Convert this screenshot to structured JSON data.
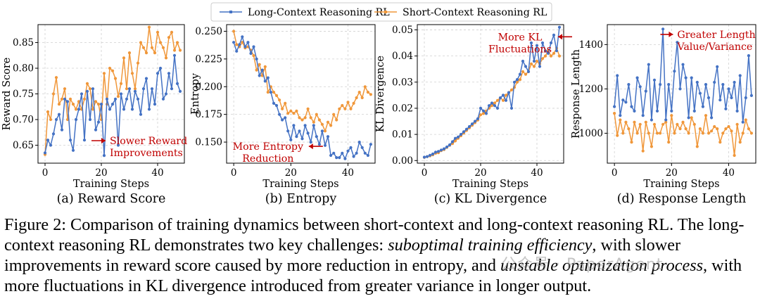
{
  "legend": {
    "entries": [
      {
        "label": "Long-Context Reasoning RL",
        "color": "#4472C4"
      },
      {
        "label": "Short-Context Reasoning RL",
        "color": "#F0973A"
      }
    ]
  },
  "colors": {
    "long": "#4472C4",
    "short": "#F0973A",
    "annotation": "#C00000",
    "grid": "#d0d0d0"
  },
  "chart_data": [
    {
      "type": "line",
      "panel_caption": "(a) Reward Score",
      "xlabel": "Training Steps",
      "ylabel": "Reward Score",
      "xlim": [
        -2.5,
        49.5
      ],
      "ylim": [
        0.615,
        0.885
      ],
      "xticks": [
        0,
        20,
        40
      ],
      "yticks": [
        0.65,
        0.7,
        0.75,
        0.8,
        0.85
      ],
      "ytick_labels": [
        "0.65",
        "0.70",
        "0.75",
        "0.80",
        "0.85"
      ],
      "grid": true,
      "series": [
        {
          "name": "Long-Context Reasoning RL",
          "x": [
            0,
            1,
            2,
            3,
            4,
            5,
            6,
            7,
            8,
            9,
            10,
            11,
            12,
            13,
            14,
            15,
            16,
            17,
            18,
            19,
            20,
            21,
            22,
            23,
            24,
            25,
            26,
            27,
            28,
            29,
            30,
            31,
            32,
            33,
            34,
            35,
            36,
            37,
            38,
            39,
            40,
            41,
            42,
            43,
            44,
            45,
            46,
            47,
            48
          ],
          "values": [
            0.635,
            0.66,
            0.65,
            0.672,
            0.7,
            0.71,
            0.68,
            0.74,
            0.735,
            0.66,
            0.64,
            0.7,
            0.72,
            0.75,
            0.66,
            0.755,
            0.7,
            0.76,
            0.68,
            0.695,
            0.73,
            0.63,
            0.74,
            0.72,
            0.73,
            0.74,
            0.65,
            0.75,
            0.72,
            0.74,
            0.76,
            0.72,
            0.755,
            0.74,
            0.71,
            0.76,
            0.78,
            0.72,
            0.76,
            0.73,
            0.79,
            0.8,
            0.74,
            0.75,
            0.79,
            0.76,
            0.825,
            0.77,
            0.755
          ]
        },
        {
          "name": "Short-Context Reasoning RL",
          "x": [
            0,
            1,
            2,
            3,
            4,
            5,
            6,
            7,
            8,
            9,
            10,
            11,
            12,
            13,
            14,
            15,
            16,
            17,
            18,
            19,
            20,
            21,
            22,
            23,
            24,
            25,
            26,
            27,
            28,
            29,
            30,
            31,
            32,
            33,
            34,
            35,
            36,
            37,
            38,
            39,
            40,
            41,
            42,
            43,
            44,
            45,
            46,
            47,
            48
          ],
          "values": [
            0.632,
            0.715,
            0.7,
            0.75,
            0.782,
            0.73,
            0.74,
            0.76,
            0.7,
            0.74,
            0.73,
            0.72,
            0.735,
            0.72,
            0.74,
            0.77,
            0.76,
            0.72,
            0.735,
            0.73,
            0.7,
            0.79,
            0.73,
            0.8,
            0.795,
            0.78,
            0.745,
            0.77,
            0.82,
            0.76,
            0.83,
            0.79,
            0.76,
            0.81,
            0.85,
            0.84,
            0.83,
            0.88,
            0.84,
            0.83,
            0.87,
            0.85,
            0.84,
            0.82,
            0.86,
            0.87,
            0.835,
            0.85,
            0.835
          ]
        }
      ],
      "annotation": {
        "text_lines": [
          "Slower Reward",
          "Improvements"
        ],
        "x": 23,
        "y": 0.652
      }
    },
    {
      "type": "line",
      "panel_caption": "(b) Entropy",
      "xlabel": "Training Steps",
      "ylabel": "Entropy",
      "xlim": [
        -2.5,
        49.5
      ],
      "ylim": [
        0.131,
        0.256
      ],
      "xticks": [
        0,
        20,
        40
      ],
      "yticks": [
        0.15,
        0.175,
        0.2,
        0.225,
        0.25
      ],
      "ytick_labels": [
        "0.150",
        "0.175",
        "0.200",
        "0.225",
        "0.250"
      ],
      "grid": true,
      "series": [
        {
          "name": "Long-Context Reasoning RL",
          "x": [
            0,
            1,
            2,
            3,
            4,
            5,
            6,
            7,
            8,
            9,
            10,
            11,
            12,
            13,
            14,
            15,
            16,
            17,
            18,
            19,
            20,
            21,
            22,
            23,
            24,
            25,
            26,
            27,
            28,
            29,
            30,
            31,
            32,
            33,
            34,
            35,
            36,
            37,
            38,
            39,
            40,
            41,
            42,
            43,
            44,
            45,
            46,
            47,
            48
          ],
          "values": [
            0.24,
            0.232,
            0.238,
            0.245,
            0.236,
            0.24,
            0.23,
            0.236,
            0.225,
            0.21,
            0.215,
            0.205,
            0.208,
            0.195,
            0.185,
            0.183,
            0.175,
            0.17,
            0.172,
            0.16,
            0.152,
            0.165,
            0.155,
            0.16,
            0.153,
            0.165,
            0.158,
            0.15,
            0.165,
            0.155,
            0.148,
            0.16,
            0.147,
            0.155,
            0.138,
            0.14,
            0.136,
            0.136,
            0.14,
            0.135,
            0.142,
            0.145,
            0.137,
            0.14,
            0.15,
            0.145,
            0.14,
            0.138,
            0.148
          ]
        },
        {
          "name": "Short-Context Reasoning RL",
          "x": [
            0,
            1,
            2,
            3,
            4,
            5,
            6,
            7,
            8,
            9,
            10,
            11,
            12,
            13,
            14,
            15,
            16,
            17,
            18,
            19,
            20,
            21,
            22,
            23,
            24,
            25,
            26,
            27,
            28,
            29,
            30,
            31,
            32,
            33,
            34,
            35,
            36,
            37,
            38,
            39,
            40,
            41,
            42,
            43,
            44,
            45,
            46,
            47,
            48
          ],
          "values": [
            0.25,
            0.238,
            0.236,
            0.24,
            0.235,
            0.236,
            0.233,
            0.228,
            0.215,
            0.22,
            0.21,
            0.218,
            0.195,
            0.2,
            0.195,
            0.192,
            0.188,
            0.18,
            0.185,
            0.176,
            0.178,
            0.176,
            0.178,
            0.172,
            0.17,
            0.172,
            0.18,
            0.172,
            0.168,
            0.175,
            0.17,
            0.166,
            0.16,
            0.168,
            0.165,
            0.175,
            0.17,
            0.18,
            0.183,
            0.18,
            0.186,
            0.18,
            0.185,
            0.19,
            0.195,
            0.19,
            0.2,
            0.195,
            0.193
          ]
        }
      ],
      "annotation": {
        "text_lines": [
          "More Entropy",
          "Reduction"
        ],
        "x": 12,
        "y": 0.143
      }
    },
    {
      "type": "line",
      "panel_caption": "(c) KL Divergence",
      "xlabel": "Training Steps",
      "ylabel": "KL Divergence",
      "xlim": [
        -2.5,
        49.5
      ],
      "ylim": [
        -0.001,
        0.052
      ],
      "xticks": [
        0,
        20,
        40
      ],
      "yticks": [
        0.0,
        0.01,
        0.02,
        0.03,
        0.04,
        0.05
      ],
      "ytick_labels": [
        "0.00",
        "0.01",
        "0.02",
        "0.03",
        "0.04",
        "0.05"
      ],
      "grid": true,
      "series": [
        {
          "name": "Long-Context Reasoning RL",
          "x": [
            0,
            1,
            2,
            3,
            4,
            5,
            6,
            7,
            8,
            9,
            10,
            11,
            12,
            13,
            14,
            15,
            16,
            17,
            18,
            19,
            20,
            21,
            22,
            23,
            24,
            25,
            26,
            27,
            28,
            29,
            30,
            31,
            32,
            33,
            34,
            35,
            36,
            37,
            38,
            39,
            40,
            41,
            42,
            43,
            44,
            45,
            46,
            47,
            48
          ],
          "values": [
            0.0013,
            0.0015,
            0.002,
            0.0025,
            0.0032,
            0.0035,
            0.004,
            0.0045,
            0.0052,
            0.006,
            0.0072,
            0.0085,
            0.009,
            0.01,
            0.011,
            0.012,
            0.013,
            0.014,
            0.015,
            0.016,
            0.02,
            0.019,
            0.018,
            0.021,
            0.022,
            0.021,
            0.02,
            0.024,
            0.025,
            0.023,
            0.026,
            0.02,
            0.03,
            0.031,
            0.033,
            0.038,
            0.036,
            0.034,
            0.045,
            0.038,
            0.044,
            0.036,
            0.045,
            0.042,
            0.041,
            0.045,
            0.048,
            0.042,
            0.051
          ]
        },
        {
          "name": "Short-Context Reasoning RL",
          "x": [
            0,
            1,
            2,
            3,
            4,
            5,
            6,
            7,
            8,
            9,
            10,
            11,
            12,
            13,
            14,
            15,
            16,
            17,
            18,
            19,
            20,
            21,
            22,
            23,
            24,
            25,
            26,
            27,
            28,
            29,
            30,
            31,
            32,
            33,
            34,
            35,
            36,
            37,
            38,
            39,
            40,
            41,
            42,
            43,
            44,
            45,
            46,
            47,
            48
          ],
          "values": [
            0.0012,
            0.0015,
            0.0018,
            0.0022,
            0.0028,
            0.003,
            0.0038,
            0.0042,
            0.005,
            0.0058,
            0.0065,
            0.0075,
            0.0085,
            0.0095,
            0.0105,
            0.0115,
            0.0125,
            0.0135,
            0.0145,
            0.0155,
            0.0175,
            0.018,
            0.019,
            0.02,
            0.021,
            0.022,
            0.023,
            0.024,
            0.023,
            0.025,
            0.026,
            0.027,
            0.028,
            0.03,
            0.031,
            0.034,
            0.033,
            0.034,
            0.037,
            0.036,
            0.038,
            0.037,
            0.039,
            0.04,
            0.042,
            0.04,
            0.041,
            0.043,
            0.04
          ]
        }
      ],
      "annotation": {
        "text_lines": [
          "More KL",
          "Fluctuations"
        ],
        "x": 34,
        "y": 0.046
      }
    },
    {
      "type": "line",
      "panel_caption": "(d) Response Length",
      "xlabel": "Training Steps",
      "ylabel": "Response Length",
      "xlim": [
        -2.5,
        49.5
      ],
      "ylim": [
        865,
        1490
      ],
      "xticks": [
        0,
        20,
        40
      ],
      "yticks": [
        1000,
        1200,
        1400
      ],
      "ytick_labels": [
        "1000",
        "1200",
        "1400"
      ],
      "grid": true,
      "series": [
        {
          "name": "Long-Context Reasoning RL",
          "x": [
            0,
            1,
            2,
            3,
            4,
            5,
            6,
            7,
            8,
            9,
            10,
            11,
            12,
            13,
            14,
            15,
            16,
            17,
            18,
            19,
            20,
            21,
            22,
            23,
            24,
            25,
            26,
            27,
            28,
            29,
            30,
            31,
            32,
            33,
            34,
            35,
            36,
            37,
            38,
            39,
            40,
            41,
            42,
            43,
            44,
            45,
            46,
            47,
            48
          ],
          "values": [
            1120,
            1260,
            1080,
            1150,
            1140,
            1220,
            1120,
            1100,
            1250,
            1210,
            1080,
            1190,
            1310,
            1060,
            1240,
            1100,
            1220,
            1470,
            1060,
            1220,
            1100,
            1280,
            1410,
            1200,
            1310,
            1250,
            1070,
            1250,
            1100,
            1230,
            1180,
            1120,
            1220,
            1160,
            1070,
            1230,
            1300,
            1150,
            1220,
            1110,
            1200,
            1160,
            1230,
            1100,
            1260,
            1050,
            1160,
            1350,
            1170
          ]
        },
        {
          "name": "Short-Context Reasoning RL",
          "x": [
            0,
            1,
            2,
            3,
            4,
            5,
            6,
            7,
            8,
            9,
            10,
            11,
            12,
            13,
            14,
            15,
            16,
            17,
            18,
            19,
            20,
            21,
            22,
            23,
            24,
            25,
            26,
            27,
            28,
            29,
            30,
            31,
            32,
            33,
            34,
            35,
            36,
            37,
            38,
            39,
            40,
            41,
            42,
            43,
            44,
            45,
            46,
            47,
            48
          ],
          "values": [
            1090,
            990,
            1060,
            1000,
            1050,
            1020,
            960,
            1050,
            1000,
            1040,
            920,
            1050,
            1000,
            940,
            1040,
            1000,
            1000,
            1040,
            1050,
            960,
            1080,
            1000,
            1040,
            1020,
            1050,
            1020,
            1000,
            1070,
            1040,
            940,
            1020,
            1000,
            1080,
            1000,
            1010,
            1030,
            1020,
            960,
            1000,
            1020,
            1030,
            1010,
            900,
            1040,
            960,
            1000,
            1060,
            1020,
            1000
          ]
        }
      ],
      "annotation": {
        "text_lines": [
          "Greater Length",
          "Value/Variance"
        ],
        "x": 22,
        "y": 1430
      }
    }
  ],
  "caption": {
    "segments": [
      {
        "text": "Figure 2: Comparison of training dynamics between short-context and long-context reasoning RL. The long-context reasoning RL demonstrates two key challenges: ",
        "italic": false
      },
      {
        "text": "suboptimal training efficiency",
        "italic": true
      },
      {
        "text": ", with slower improvements in reward score caused by more reduction in entropy, and ",
        "italic": false
      },
      {
        "text": "unstable optimization process",
        "italic": true
      },
      {
        "text": ", with more fluctuations in KL divergence introduced from greater variance in longer output.",
        "italic": false
      }
    ]
  },
  "watermark": "公众号 · PaperAgent"
}
